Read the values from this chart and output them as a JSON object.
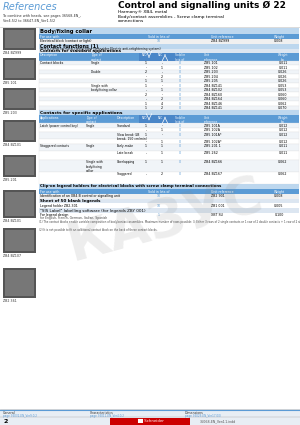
{
  "title": "Control and signalling units Ø 22",
  "subtitle1": "Harmony® XB4, metal",
  "subtitle2": "Body/contact assemblies - Screw clamp terminal",
  "subtitle3": "connections",
  "references_text": "References",
  "combine_text": "To combine with heads, see pages 36568-EN_,\nVer4.5/2 to 36647-EN_Ver1.5/2",
  "body_fixing_title": "Body/fixing collar",
  "body_fixing_col1": "For use with",
  "body_fixing_col2": "Sold in lots of",
  "body_fixing_col3": "Unit reference",
  "body_fixing_col4": "Weight\nkg",
  "body_fixing_row1_desc": "Electrical block (contact or light)",
  "body_fixing_row1_sold": "10",
  "body_fixing_row1_ref": "ZB4 BZ999",
  "body_fixing_row1_wt": "0.008",
  "contact_functions_title": "Contact functions (1)",
  "contact_subtitle": "Screw clamp terminal connections (Schneider Electric anti-retightening system)",
  "contacts_std_title": "Contacts for standard applications",
  "contact_rows": [
    {
      "desc": "Contact blocks",
      "type": "Single",
      "no": "1",
      "nc": "-",
      "sold": "0",
      "ref": "ZB5 101",
      "wt": "0.011"
    },
    {
      "desc": "",
      "type": "",
      "no": "-",
      "nc": "1",
      "sold": "0",
      "ref": "ZB5 102",
      "wt": "0.011"
    },
    {
      "desc": "",
      "type": "Double",
      "no": "2",
      "nc": "-",
      "sold": "0",
      "ref": "ZB5 203",
      "wt": "0.026"
    },
    {
      "desc": "",
      "type": "",
      "no": "-",
      "nc": "2",
      "sold": "0",
      "ref": "ZB5 204",
      "wt": "0.026"
    },
    {
      "desc": "",
      "type": "",
      "no": "1",
      "nc": "1",
      "sold": "0",
      "ref": "ZB5 205",
      "wt": "0.026"
    },
    {
      "desc": "",
      "type": "Single with\nbody/fixing collar",
      "no": "1",
      "nc": "-",
      "sold": "0",
      "ref": "ZB4 BZ141",
      "wt": "0.053"
    },
    {
      "desc": "",
      "type": "",
      "no": "-",
      "nc": "1",
      "sold": "0",
      "ref": "ZB4 BZ102",
      "wt": "0.053"
    },
    {
      "desc": "",
      "type": "",
      "no": "2",
      "nc": "-",
      "sold": "0",
      "ref": "ZB4 BZ160",
      "wt": "0.060"
    },
    {
      "desc": "",
      "type": "",
      "no": "-",
      "nc": "2",
      "sold": "0",
      "ref": "ZB4 BZ164",
      "wt": "0.060"
    },
    {
      "desc": "",
      "type": "",
      "no": "1",
      "nc": "4",
      "sold": "0",
      "ref": "ZB4 BZ146",
      "wt": "0.062"
    },
    {
      "desc": "",
      "type": "",
      "no": "1",
      "nc": "2",
      "sold": "0",
      "ref": "ZB4 BZ141",
      "wt": "0.070"
    }
  ],
  "contacts_specific_title": "Contacts for specific applications",
  "spec_rows": [
    {
      "app": "Latch (power control key)",
      "type": "Single",
      "desc": "Standard",
      "no": "1",
      "nc": "-",
      "sold": "0",
      "ref": "ZB5 101A",
      "wt": "0.012"
    },
    {
      "app": "",
      "type": "",
      "desc": "",
      "no": "-",
      "nc": "1",
      "sold": "0",
      "ref": "ZB5 102A",
      "wt": "0.012"
    },
    {
      "app": "",
      "type": "",
      "desc": "Slow break (LB\nbreak, 150 cm/min)",
      "no": "1",
      "nc": "-",
      "sold": "0",
      "ref": "ZB5 101A*",
      "wt": "0.012"
    },
    {
      "app": "",
      "type": "",
      "desc": "",
      "no": "-",
      "nc": "1",
      "sold": "0",
      "ref": "ZB5 102A*",
      "wt": "0.012"
    },
    {
      "app": "Staggered contacts",
      "type": "Single",
      "desc": "Early-make",
      "no": "1",
      "nc": "1",
      "sold": "0",
      "ref": "ZB5 201 1",
      "wt": "0.011"
    },
    {
      "app": "",
      "type": "",
      "desc": "Late break",
      "no": "-",
      "nc": "1",
      "sold": "0",
      "ref": "ZB5 262",
      "wt": "0.011"
    },
    {
      "app": "",
      "type": "Single with\nbody/fixing\ncollar",
      "desc": "Overlapping",
      "no": "1",
      "nc": "1",
      "sold": "0",
      "ref": "ZB4 BZ166",
      "wt": "0.062"
    },
    {
      "app": "",
      "type": "",
      "desc": "Staggered",
      "no": "-",
      "nc": "2",
      "sold": "0",
      "ref": "ZB4 BZ167",
      "wt": "0.062"
    }
  ],
  "clip_on_title": "Clip-on legend holders for electrical blocks with screw clamp terminal connections",
  "clip_row1_desc": "Identification of an XB4-B control or signalling unit",
  "clip_row1_sold": "10",
  "clip_row1_ref": "ZB2 901",
  "clip_row1_wt": "0.008",
  "sheet_title": "Sheet of 50 blank legends",
  "sheet_holder": "Legend holder ZB2-301",
  "sheet_sold": "10",
  "sheet_ref": "ZB1 001",
  "sheet_wt": "0.005",
  "sis_title": "\"SIS Label\" labelling software (for legends ZBY 001)",
  "sis_for": "For legend design",
  "sis_lang": "for English, French, German, Italian, Spanish",
  "sis_sold": "1",
  "sis_ref": "XBT SU",
  "sis_wt": "0.100",
  "footer_ref": "36068-EN_Ver4.1.indd",
  "page_num": "2",
  "watermark": "КАЗУС",
  "img_labels": [
    "ZB4 BZ999",
    "ZB5 101",
    "ZB5 203",
    "ZB4 BZ101",
    "ZB5 201",
    "ZB4 BZ101",
    "ZB4 BZ107",
    "ZB2 361"
  ],
  "bg_color": "#ffffff",
  "ref_color": "#5b9bd5",
  "blue_header": "#5b9bd5",
  "light_blue": "#dce6f1",
  "mid_blue": "#bdd7ee",
  "fn1": "(1) The contact blocks enable variable composition of body/contact assemblies. Maximum number of rows possible: 3. Either 3 rows of 2 single contacts or 1 row of 2 double contacts + 1 row of 2 single contacts (double contacts occupy the first 2 rows). Maximum number of contacts is specified on page 36672-EN, Ver1.5/2.",
  "fn2": "(2) It is not possible to fit an additional contact block on the back of these contact blocks."
}
